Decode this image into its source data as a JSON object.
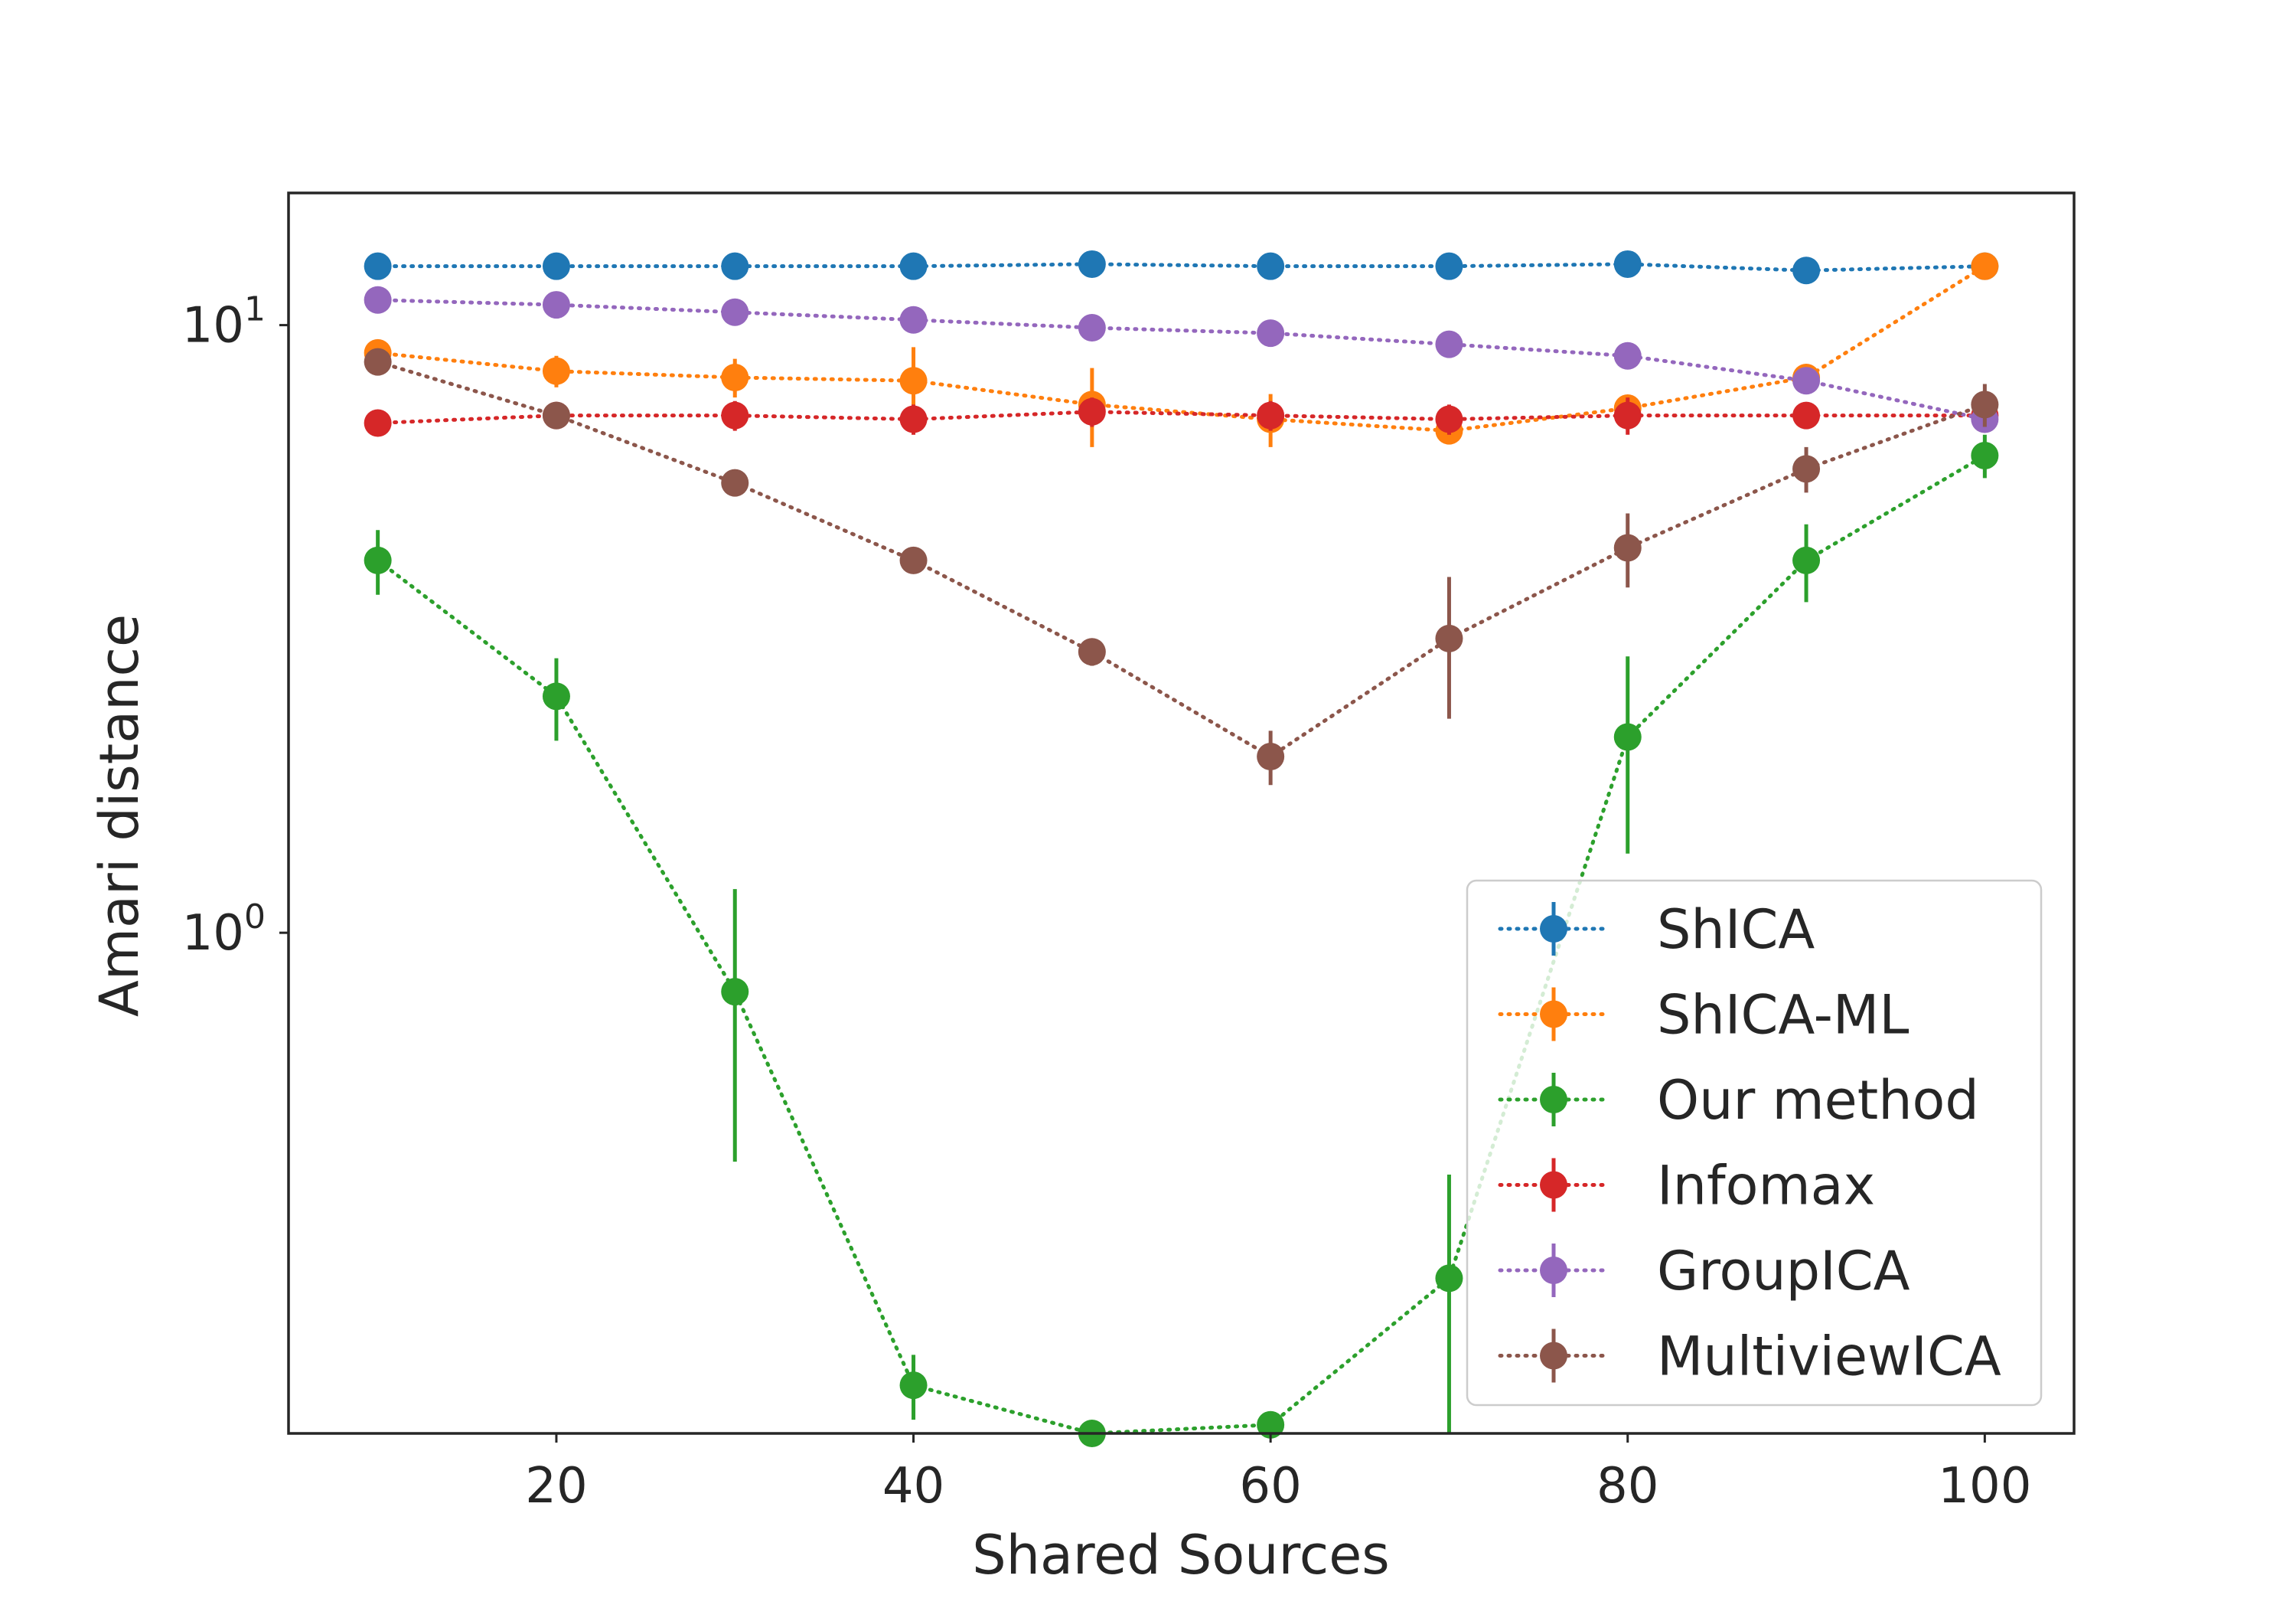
{
  "chart_data": {
    "type": "line",
    "xlabel": "Shared Sources",
    "ylabel": "Amari distance",
    "xlim": [
      5,
      105
    ],
    "ylim": [
      0.15,
      16.5
    ],
    "yscale": "log",
    "grid": false,
    "legend_position": "lower right",
    "x": [
      10,
      20,
      30,
      40,
      50,
      60,
      70,
      80,
      90,
      100
    ],
    "x_ticks": [
      20,
      40,
      60,
      80,
      100
    ],
    "x_tick_labels": [
      "20",
      "40",
      "60",
      "80",
      "100"
    ],
    "y_ticks": [
      1,
      10
    ],
    "y_tick_labels": [
      {
        "base": "10",
        "exp": "0"
      },
      {
        "base": "10",
        "exp": "1"
      }
    ],
    "series": [
      {
        "name": "ShICA",
        "color": "#1f77b4",
        "values": [
          12.5,
          12.5,
          12.5,
          12.5,
          12.6,
          12.5,
          12.5,
          12.6,
          12.3,
          12.5
        ],
        "errors": [
          0.15,
          0.15,
          0.15,
          0.15,
          0.15,
          0.15,
          0.15,
          0.15,
          0.2,
          0.15
        ]
      },
      {
        "name": "ShICA-ML",
        "color": "#ff7f0e",
        "values": [
          9.0,
          8.4,
          8.2,
          8.1,
          7.4,
          7.0,
          6.7,
          7.3,
          8.2,
          12.5
        ],
        "errors": [
          0.3,
          0.5,
          0.6,
          1.1,
          1.1,
          0.7,
          0.3,
          0.3,
          0.4,
          0.4
        ]
      },
      {
        "name": "Our method",
        "color": "#2ca02c",
        "values": [
          4.1,
          2.45,
          0.8,
          0.18,
          0.15,
          0.155,
          0.27,
          2.1,
          4.1,
          6.1
        ],
        "errors": [
          0.5,
          0.38,
          0.38,
          0.022,
          0.005,
          0.004,
          0.13,
          0.75,
          0.6,
          0.5
        ]
      },
      {
        "name": "Infomax",
        "color": "#d62728",
        "values": [
          6.9,
          7.1,
          7.1,
          7.0,
          7.2,
          7.1,
          7.0,
          7.1,
          7.1,
          7.1
        ],
        "errors": [
          0.3,
          0.3,
          0.4,
          0.4,
          0.4,
          0.4,
          0.4,
          0.5,
          0.3,
          0.3
        ]
      },
      {
        "name": "GroupICA",
        "color": "#9467bd",
        "values": [
          11.0,
          10.8,
          10.5,
          10.2,
          9.9,
          9.7,
          9.3,
          8.9,
          8.1,
          7.0
        ],
        "errors": [
          0.2,
          0.2,
          0.2,
          0.2,
          0.2,
          0.2,
          0.2,
          0.2,
          0.3,
          0.3
        ]
      },
      {
        "name": "MultiviewICA",
        "color": "#8c564b",
        "values": [
          8.7,
          7.1,
          5.5,
          4.1,
          2.9,
          1.95,
          3.05,
          4.3,
          5.8,
          7.4
        ],
        "errors": [
          0.2,
          0.2,
          0.2,
          0.15,
          0.15,
          0.2,
          0.8,
          0.6,
          0.5,
          0.6
        ]
      }
    ]
  }
}
